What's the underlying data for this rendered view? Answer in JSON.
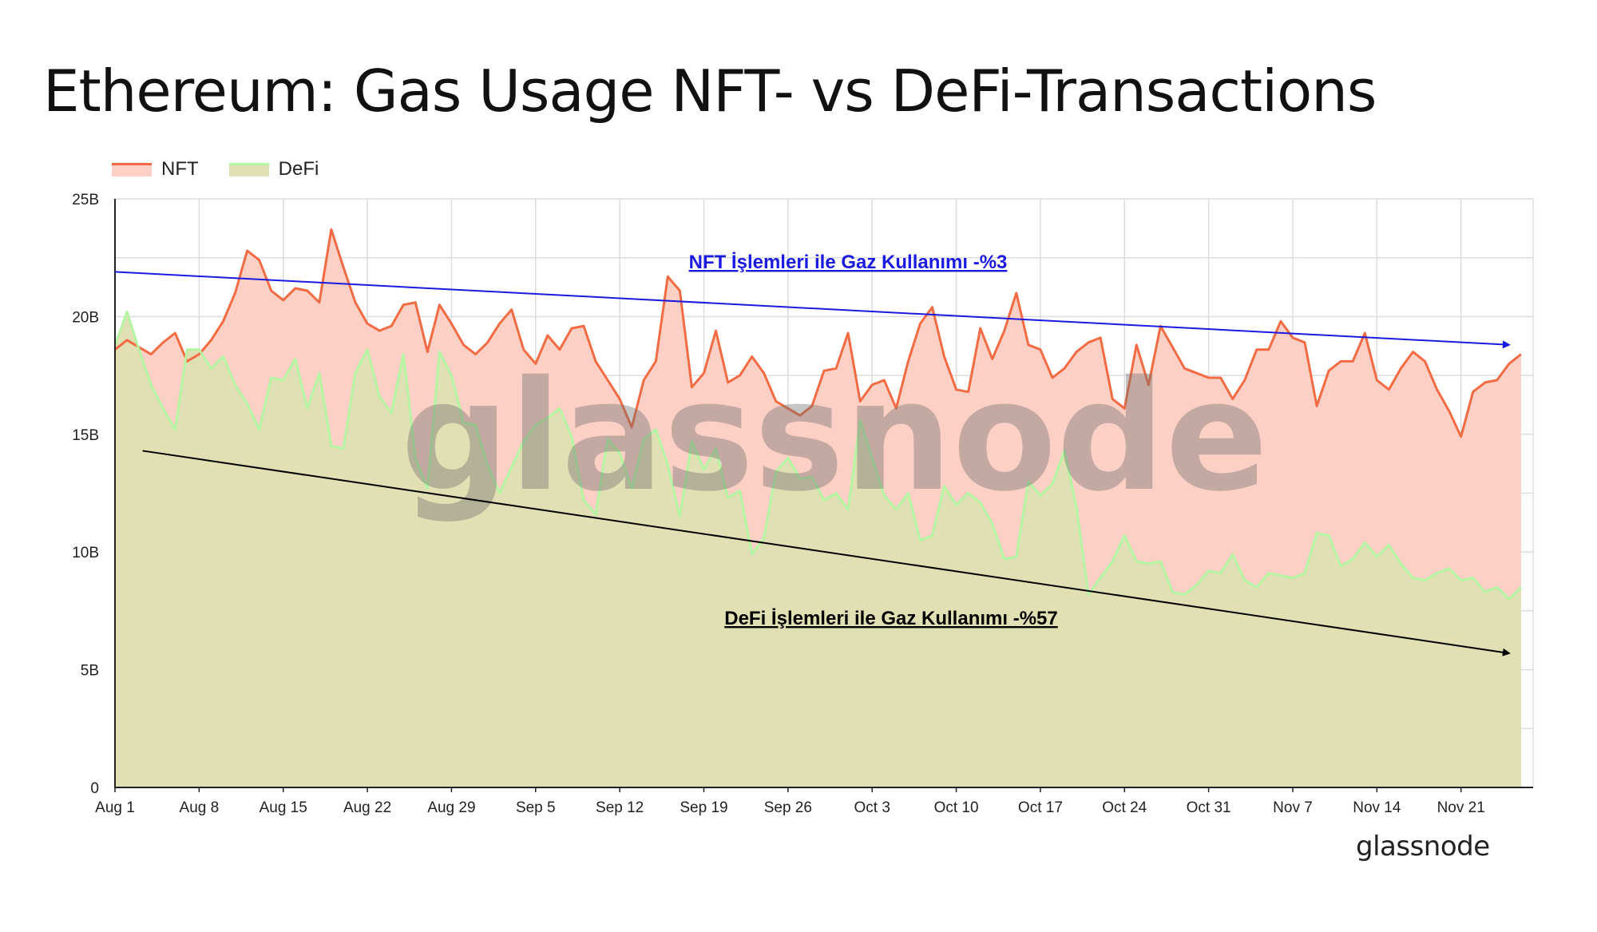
{
  "title": "Ethereum: Gas Usage NFT- vs DeFi-Transactions",
  "brand": "glassnode",
  "watermark": "glassnode",
  "legend": [
    {
      "label": "NFT",
      "color": "#f26b43",
      "fill": "#fcd0c4"
    },
    {
      "label": "DeFi",
      "color": "#b4f5a3",
      "fill": "#e1dfb4"
    }
  ],
  "chart_data": {
    "type": "area",
    "xlabel": "",
    "ylabel": "",
    "ylim": [
      0,
      25
    ],
    "y_unit": "B",
    "y_ticks": [
      {
        "value": 0,
        "label": "0"
      },
      {
        "value": 5,
        "label": "5B"
      },
      {
        "value": 10,
        "label": "10B"
      },
      {
        "value": 15,
        "label": "15B"
      },
      {
        "value": 20,
        "label": "20B"
      },
      {
        "value": 25,
        "label": "25B"
      }
    ],
    "x_start": "2022-08-01",
    "x_ticks": [
      {
        "day": 0,
        "label": "Aug 1"
      },
      {
        "day": 7,
        "label": "Aug 8"
      },
      {
        "day": 14,
        "label": "Aug 15"
      },
      {
        "day": 21,
        "label": "Aug 22"
      },
      {
        "day": 28,
        "label": "Aug 29"
      },
      {
        "day": 35,
        "label": "Sep 5"
      },
      {
        "day": 42,
        "label": "Sep 12"
      },
      {
        "day": 49,
        "label": "Sep 19"
      },
      {
        "day": 56,
        "label": "Sep 26"
      },
      {
        "day": 63,
        "label": "Oct 3"
      },
      {
        "day": 70,
        "label": "Oct 10"
      },
      {
        "day": 77,
        "label": "Oct 17"
      },
      {
        "day": 84,
        "label": "Oct 24"
      },
      {
        "day": 91,
        "label": "Oct 31"
      },
      {
        "day": 98,
        "label": "Nov 7"
      },
      {
        "day": 105,
        "label": "Nov 14"
      },
      {
        "day": 112,
        "label": "Nov 21"
      }
    ],
    "x_days": 118,
    "grid": true,
    "legend_position": "top-left",
    "series": [
      {
        "name": "NFT",
        "color": "#f26b43",
        "fill": "#fcd0c4",
        "values": [
          18.6,
          19.0,
          18.7,
          18.4,
          18.9,
          19.3,
          18.1,
          18.4,
          19.0,
          19.8,
          21.0,
          22.8,
          22.4,
          21.1,
          20.7,
          21.2,
          21.1,
          20.6,
          23.7,
          22.1,
          20.6,
          19.7,
          19.4,
          19.6,
          20.5,
          20.6,
          18.5,
          20.5,
          19.7,
          18.8,
          18.4,
          18.9,
          19.7,
          20.3,
          18.6,
          18.0,
          19.2,
          18.6,
          19.5,
          19.6,
          18.1,
          17.3,
          16.5,
          15.3,
          17.3,
          18.1,
          21.7,
          21.1,
          17.0,
          17.6,
          19.4,
          17.2,
          17.5,
          18.3,
          17.6,
          16.4,
          16.1,
          15.8,
          16.2,
          17.7,
          17.8,
          19.3,
          16.4,
          17.1,
          17.3,
          16.1,
          18.1,
          19.7,
          20.4,
          18.3,
          16.9,
          16.8,
          19.5,
          18.2,
          19.4,
          21.0,
          18.8,
          18.6,
          17.4,
          17.8,
          18.5,
          18.9,
          19.1,
          16.5,
          16.1,
          18.8,
          17.1,
          19.6,
          18.7,
          17.8,
          17.6,
          17.4,
          17.4,
          16.5,
          17.3,
          18.6,
          18.6,
          19.8,
          19.1,
          18.9,
          16.2,
          17.7,
          18.1,
          18.1,
          19.3,
          17.3,
          16.9,
          17.8,
          18.5,
          18.1,
          16.9,
          16.0,
          14.9,
          16.8,
          17.2,
          17.3,
          18.0,
          18.4
        ]
      },
      {
        "name": "DeFi",
        "color": "#b4f5a3",
        "fill": "#e1dfb4",
        "values": [
          18.8,
          20.2,
          18.6,
          17.1,
          16.1,
          15.2,
          18.6,
          18.6,
          17.8,
          18.3,
          17.1,
          16.3,
          15.2,
          17.4,
          17.3,
          18.2,
          16.1,
          17.6,
          14.5,
          14.4,
          17.6,
          18.6,
          16.6,
          15.9,
          18.4,
          14.0,
          12.7,
          18.5,
          17.5,
          15.5,
          15.4,
          13.7,
          12.5,
          13.6,
          14.7,
          15.4,
          15.7,
          16.1,
          14.9,
          12.2,
          11.6,
          14.8,
          14.2,
          12.7,
          14.8,
          15.2,
          13.7,
          11.5,
          14.7,
          13.5,
          14.4,
          12.3,
          12.6,
          9.9,
          10.6,
          13.4,
          14.0,
          13.1,
          13.2,
          12.2,
          12.5,
          11.8,
          15.6,
          14.0,
          12.4,
          11.8,
          12.5,
          10.5,
          10.7,
          12.8,
          12.0,
          12.5,
          12.1,
          11.2,
          9.7,
          9.8,
          13.0,
          12.4,
          12.9,
          14.3,
          11.9,
          8.2,
          8.9,
          9.6,
          10.7,
          9.6,
          9.5,
          9.6,
          8.3,
          8.2,
          8.6,
          9.2,
          9.1,
          9.9,
          8.8,
          8.5,
          9.1,
          9.0,
          8.9,
          9.1,
          10.8,
          10.7,
          9.4,
          9.7,
          10.4,
          9.8,
          10.3,
          9.5,
          8.9,
          8.8,
          9.1,
          9.3,
          8.8,
          8.9,
          8.3,
          8.5,
          8.0,
          8.5
        ]
      }
    ],
    "annotations": [
      {
        "text": "NFT İşlemleri ile Gaz Kullanımı -%3",
        "color": "#1a1ae0",
        "trend_from": {
          "day": 0,
          "value": 21.9
        },
        "trend_to": {
          "day": 116,
          "value": 18.8
        }
      },
      {
        "text": "DeFi İşlemleri ile Gaz Kullanımı -%57",
        "color": "#000000",
        "trend_from": {
          "day": 2.3,
          "value": 14.3
        },
        "trend_to": {
          "day": 116,
          "value": 5.7
        }
      }
    ]
  }
}
